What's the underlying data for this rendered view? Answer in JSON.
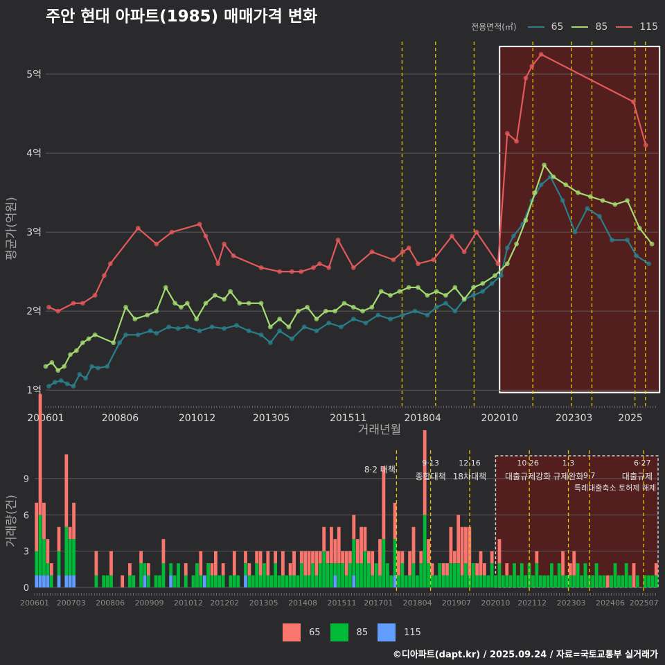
{
  "title": "주안 현대 아파트(1985) 매매가격 변화",
  "legend": {
    "title": "전용면적(㎡)",
    "items": [
      "65",
      "85",
      "115"
    ]
  },
  "colors": {
    "bg": "#2a2a2c",
    "grid": "#5a5a5a",
    "line65": "#2a7f8c",
    "line85": "#a5dc72",
    "line115": "#e4595b",
    "bar65": "#f8766d",
    "bar85": "#00ba38",
    "bar115": "#619cff",
    "event": "#e8c800",
    "region": "#5a1c1c"
  },
  "footer": "©디아파트(dapt.kr) / 2025.09.24 / 자료=국토교통부 실거래가",
  "bar_legend": [
    "65",
    "85",
    "115"
  ],
  "chart_data": [
    {
      "type": "line",
      "title": "주안 현대 아파트(1985) 매매가격 변화",
      "xlabel": "거래년월",
      "ylabel": "평균가(억원)",
      "xlim": [
        2006.0,
        2025.9
      ],
      "ylim": [
        0.8,
        5.5
      ],
      "x_ticks": [
        {
          "value": 2006.0,
          "label": "200601"
        },
        {
          "value": 2008.42,
          "label": "200806"
        },
        {
          "value": 2010.92,
          "label": "201012"
        },
        {
          "value": 2013.33,
          "label": "201305"
        },
        {
          "value": 2015.83,
          "label": "201511"
        },
        {
          "value": 2018.25,
          "label": "201804"
        },
        {
          "value": 2020.75,
          "label": "202010"
        },
        {
          "value": 2023.17,
          "label": "202303"
        },
        {
          "value": 2025.0,
          "label": "2025"
        }
      ],
      "y_ticks": [
        {
          "value": 1,
          "label": "1억"
        },
        {
          "value": 2,
          "label": "2억"
        },
        {
          "value": 3,
          "label": "3억"
        },
        {
          "value": 4,
          "label": "4억"
        },
        {
          "value": 5,
          "label": "5억"
        }
      ],
      "event_lines": [
        2017.58,
        2018.67,
        2019.92,
        2021.83,
        2023.08,
        2023.75,
        2025.15,
        2025.49
      ],
      "highlight_range": [
        2020.75,
        2025.95
      ],
      "highlight_ylim": [
        0.97,
        5.35
      ],
      "series": [
        {
          "name": "65",
          "x": [
            2006.1,
            2006.3,
            2006.5,
            2006.7,
            2006.9,
            2007.1,
            2007.3,
            2007.5,
            2007.7,
            2008.0,
            2008.4,
            2008.6,
            2009.0,
            2009.4,
            2009.6,
            2010.0,
            2010.3,
            2010.6,
            2011.0,
            2011.4,
            2011.8,
            2012.2,
            2012.6,
            2013.0,
            2013.3,
            2013.6,
            2014.0,
            2014.4,
            2014.8,
            2015.2,
            2015.6,
            2016.0,
            2016.4,
            2016.8,
            2017.2,
            2017.6,
            2018.0,
            2018.4,
            2018.7,
            2019.0,
            2019.3,
            2019.6,
            2019.9,
            2020.2,
            2020.5,
            2020.8,
            2021.0,
            2021.2,
            2021.5,
            2021.8,
            2022.1,
            2022.4,
            2022.8,
            2023.2,
            2023.6,
            2024.0,
            2024.4,
            2024.9,
            2025.2,
            2025.6
          ],
          "y": [
            1.05,
            1.1,
            1.12,
            1.08,
            1.05,
            1.2,
            1.15,
            1.3,
            1.28,
            1.3,
            1.6,
            1.7,
            1.7,
            1.75,
            1.72,
            1.8,
            1.78,
            1.8,
            1.75,
            1.8,
            1.78,
            1.82,
            1.75,
            1.7,
            1.6,
            1.75,
            1.65,
            1.8,
            1.75,
            1.85,
            1.8,
            1.9,
            1.85,
            1.95,
            1.9,
            1.95,
            2.0,
            1.95,
            2.05,
            2.1,
            2.0,
            2.15,
            2.2,
            2.25,
            2.35,
            2.45,
            2.8,
            2.95,
            3.1,
            3.4,
            3.6,
            3.7,
            3.4,
            3.0,
            3.3,
            3.2,
            2.9,
            2.9,
            2.7,
            2.6
          ]
        },
        {
          "name": "85",
          "x": [
            2006.0,
            2006.2,
            2006.4,
            2006.6,
            2006.8,
            2007.0,
            2007.2,
            2007.4,
            2007.6,
            2008.2,
            2008.6,
            2008.9,
            2009.3,
            2009.6,
            2009.9,
            2010.2,
            2010.4,
            2010.6,
            2010.9,
            2011.2,
            2011.5,
            2011.8,
            2012.0,
            2012.3,
            2012.6,
            2013.0,
            2013.3,
            2013.6,
            2013.9,
            2014.2,
            2014.5,
            2014.8,
            2015.1,
            2015.4,
            2015.7,
            2016.0,
            2016.3,
            2016.6,
            2016.9,
            2017.2,
            2017.5,
            2017.8,
            2018.1,
            2018.4,
            2018.7,
            2019.0,
            2019.3,
            2019.6,
            2019.9,
            2020.2,
            2020.6,
            2021.0,
            2021.3,
            2021.6,
            2021.9,
            2022.2,
            2022.5,
            2022.9,
            2023.3,
            2023.7,
            2024.1,
            2024.5,
            2024.9,
            2025.3,
            2025.7
          ],
          "y": [
            1.3,
            1.35,
            1.25,
            1.3,
            1.45,
            1.5,
            1.6,
            1.65,
            1.7,
            1.6,
            2.05,
            1.9,
            1.95,
            2.0,
            2.3,
            2.1,
            2.05,
            2.1,
            1.9,
            2.1,
            2.2,
            2.15,
            2.25,
            2.1,
            2.1,
            2.1,
            1.8,
            1.9,
            1.8,
            2.0,
            2.05,
            1.9,
            2.0,
            2.0,
            2.1,
            2.05,
            2.0,
            2.05,
            2.25,
            2.2,
            2.25,
            2.3,
            2.3,
            2.2,
            2.25,
            2.2,
            2.3,
            2.15,
            2.3,
            2.35,
            2.45,
            2.6,
            2.85,
            3.15,
            3.5,
            3.85,
            3.7,
            3.6,
            3.5,
            3.45,
            3.4,
            3.35,
            3.4,
            3.05,
            2.85
          ]
        },
        {
          "name": "115",
          "x": [
            2006.1,
            2006.4,
            2006.9,
            2007.2,
            2007.6,
            2007.9,
            2008.1,
            2009.0,
            2009.6,
            2010.1,
            2011.0,
            2011.2,
            2011.6,
            2011.8,
            2012.1,
            2013.0,
            2013.6,
            2014.0,
            2014.3,
            2014.7,
            2014.9,
            2015.2,
            2015.5,
            2016.0,
            2016.6,
            2017.3,
            2017.6,
            2017.8,
            2018.1,
            2018.6,
            2019.2,
            2019.6,
            2020.0,
            2020.7,
            2021.0,
            2021.3,
            2021.6,
            2021.8,
            2022.1,
            2025.1,
            2025.5
          ],
          "y": [
            2.05,
            2.0,
            2.1,
            2.1,
            2.2,
            2.45,
            2.6,
            3.05,
            2.85,
            3.0,
            3.1,
            2.95,
            2.6,
            2.85,
            2.7,
            2.55,
            2.5,
            2.5,
            2.5,
            2.55,
            2.6,
            2.55,
            2.9,
            2.55,
            2.75,
            2.65,
            2.75,
            2.8,
            2.6,
            2.65,
            2.95,
            2.75,
            3.0,
            2.6,
            4.25,
            4.15,
            4.95,
            5.1,
            5.25,
            4.65,
            4.1
          ]
        }
      ]
    },
    {
      "type": "bar",
      "xlabel": "",
      "ylabel": "거래량(건)",
      "xlim": [
        2006.0,
        2025.95
      ],
      "ylim": [
        0,
        11
      ],
      "y_ticks": [
        0,
        3,
        6,
        9
      ],
      "x_ticks": [
        {
          "value": 2006.0,
          "label": "200601"
        },
        {
          "value": 2007.17,
          "label": "200703"
        },
        {
          "value": 2008.42,
          "label": "200806"
        },
        {
          "value": 2009.67,
          "label": "200909"
        },
        {
          "value": 2010.92,
          "label": "201012"
        },
        {
          "value": 2012.08,
          "label": "201202"
        },
        {
          "value": 2013.33,
          "label": "201305"
        },
        {
          "value": 2014.58,
          "label": "201408"
        },
        {
          "value": 2015.83,
          "label": "201511"
        },
        {
          "value": 2017.0,
          "label": "201701"
        },
        {
          "value": 2018.25,
          "label": "201804"
        },
        {
          "value": 2019.5,
          "label": "201907"
        },
        {
          "value": 2020.75,
          "label": "202010"
        },
        {
          "value": 2021.92,
          "label": "202112"
        },
        {
          "value": 2023.17,
          "label": "202303"
        },
        {
          "value": 2024.42,
          "label": "202406"
        },
        {
          "value": 2025.5,
          "label": "202507"
        }
      ],
      "annotations": [
        {
          "x": 2017.58,
          "date": "",
          "text": "8·2 대책"
        },
        {
          "x": 2018.67,
          "date": "9·13",
          "text": "종합대책"
        },
        {
          "x": 2019.92,
          "date": "12·16",
          "text": "18차대책"
        },
        {
          "x": 2021.83,
          "date": "10·26",
          "text": "대출규제강화"
        },
        {
          "x": 2023.08,
          "date": "1·3",
          "text": "규제완화"
        },
        {
          "x": 2023.75,
          "date": "9·7",
          "text": "특례대출축소 토허제 해제"
        },
        {
          "x": 2025.49,
          "date": "6·27",
          "text": "대출규제"
        }
      ],
      "highlight_range": [
        2020.75,
        2025.95
      ],
      "series": [
        {
          "name": "65",
          "values": [
            4,
            10,
            3,
            2,
            1,
            0,
            2,
            0,
            6,
            1,
            3,
            0,
            0,
            0,
            0,
            0,
            2,
            0,
            0,
            0,
            2,
            0,
            0,
            1,
            0,
            1,
            0,
            0,
            1,
            0,
            1,
            0,
            0,
            0,
            2,
            0,
            0,
            0,
            0,
            0,
            1,
            0,
            0,
            0,
            2,
            0,
            0,
            1,
            2,
            0,
            1,
            0,
            0,
            2,
            0,
            0,
            1,
            1,
            0,
            1,
            2,
            0,
            2,
            0,
            1,
            0,
            2,
            0,
            1,
            2,
            0,
            1,
            2,
            2,
            1,
            2,
            1,
            2,
            1,
            3,
            2,
            3,
            1,
            2,
            1,
            2,
            2,
            3,
            2,
            1,
            2,
            0,
            3,
            6,
            0,
            0,
            3,
            2,
            1,
            0,
            2,
            3,
            0,
            1,
            7,
            2,
            1,
            0,
            0,
            1,
            1,
            3,
            1,
            4,
            4,
            3,
            4,
            0,
            1,
            2,
            1,
            0,
            1,
            0,
            2,
            0,
            1,
            0,
            0,
            0,
            0,
            0,
            0,
            0,
            1,
            0,
            0,
            0,
            0,
            0,
            0,
            2,
            0,
            1,
            2,
            0,
            0,
            0,
            0,
            0,
            0,
            0,
            0,
            1,
            0,
            0,
            0,
            0,
            0,
            0,
            2,
            0,
            0,
            0,
            0,
            0,
            1
          ]
        },
        {
          "name": "85",
          "values": [
            2,
            5,
            3,
            1,
            1,
            0,
            2,
            0,
            4,
            3,
            3,
            0,
            0,
            0,
            0,
            0,
            1,
            0,
            1,
            1,
            1,
            0,
            0,
            0,
            0,
            1,
            1,
            0,
            2,
            1,
            1,
            0,
            1,
            1,
            2,
            0,
            1,
            1,
            2,
            0,
            1,
            0,
            1,
            2,
            1,
            0,
            2,
            1,
            1,
            1,
            1,
            0,
            1,
            1,
            1,
            0,
            1,
            1,
            1,
            2,
            1,
            2,
            1,
            1,
            2,
            1,
            1,
            1,
            1,
            1,
            1,
            2,
            1,
            1,
            2,
            1,
            2,
            3,
            2,
            2,
            1,
            2,
            2,
            1,
            2,
            3,
            2,
            2,
            3,
            2,
            1,
            2,
            1,
            4,
            2,
            1,
            3,
            1,
            2,
            1,
            1,
            2,
            1,
            2,
            6,
            2,
            1,
            1,
            2,
            1,
            1,
            2,
            2,
            2,
            1,
            2,
            1,
            2,
            1,
            1,
            1,
            1,
            2,
            1,
            2,
            1,
            1,
            1,
            2,
            1,
            2,
            1,
            2,
            1,
            2,
            1,
            1,
            1,
            2,
            1,
            2,
            1,
            1,
            1,
            1,
            2,
            1,
            2,
            1,
            1,
            2,
            1,
            1,
            0,
            1,
            2,
            1,
            1,
            2,
            1,
            0,
            1,
            0,
            1,
            1,
            1,
            1
          ]
        },
        {
          "name": "115",
          "values": [
            1,
            1,
            1,
            1,
            0,
            0,
            1,
            0,
            1,
            1,
            1,
            0,
            0,
            0,
            0,
            0,
            0,
            0,
            0,
            0,
            0,
            0,
            0,
            0,
            0,
            0,
            0,
            0,
            0,
            1,
            0,
            0,
            0,
            0,
            0,
            0,
            1,
            0,
            0,
            0,
            0,
            0,
            0,
            0,
            0,
            1,
            0,
            0,
            0,
            0,
            0,
            0,
            0,
            0,
            0,
            0,
            1,
            0,
            0,
            0,
            0,
            0,
            0,
            0,
            0,
            0,
            0,
            0,
            0,
            0,
            0,
            0,
            0,
            0,
            0,
            0,
            0,
            0,
            0,
            0,
            1,
            0,
            0,
            0,
            0,
            1,
            0,
            0,
            0,
            0,
            0,
            0,
            0,
            0,
            0,
            0,
            1,
            0,
            0,
            0,
            0,
            0,
            0,
            0,
            0,
            0,
            0,
            0,
            0,
            0,
            0,
            0,
            0,
            0,
            0,
            0,
            0,
            0,
            0,
            0,
            0,
            0,
            0,
            0,
            0,
            0,
            0,
            0,
            0,
            0,
            0,
            0,
            0,
            0,
            0,
            0,
            0,
            0,
            0,
            0,
            0,
            0,
            0,
            0,
            0,
            0,
            0,
            0,
            0,
            0,
            0,
            0,
            0,
            0,
            0,
            0,
            0,
            0,
            0,
            0,
            0,
            0,
            0,
            0,
            0,
            0,
            0
          ]
        }
      ]
    }
  ]
}
